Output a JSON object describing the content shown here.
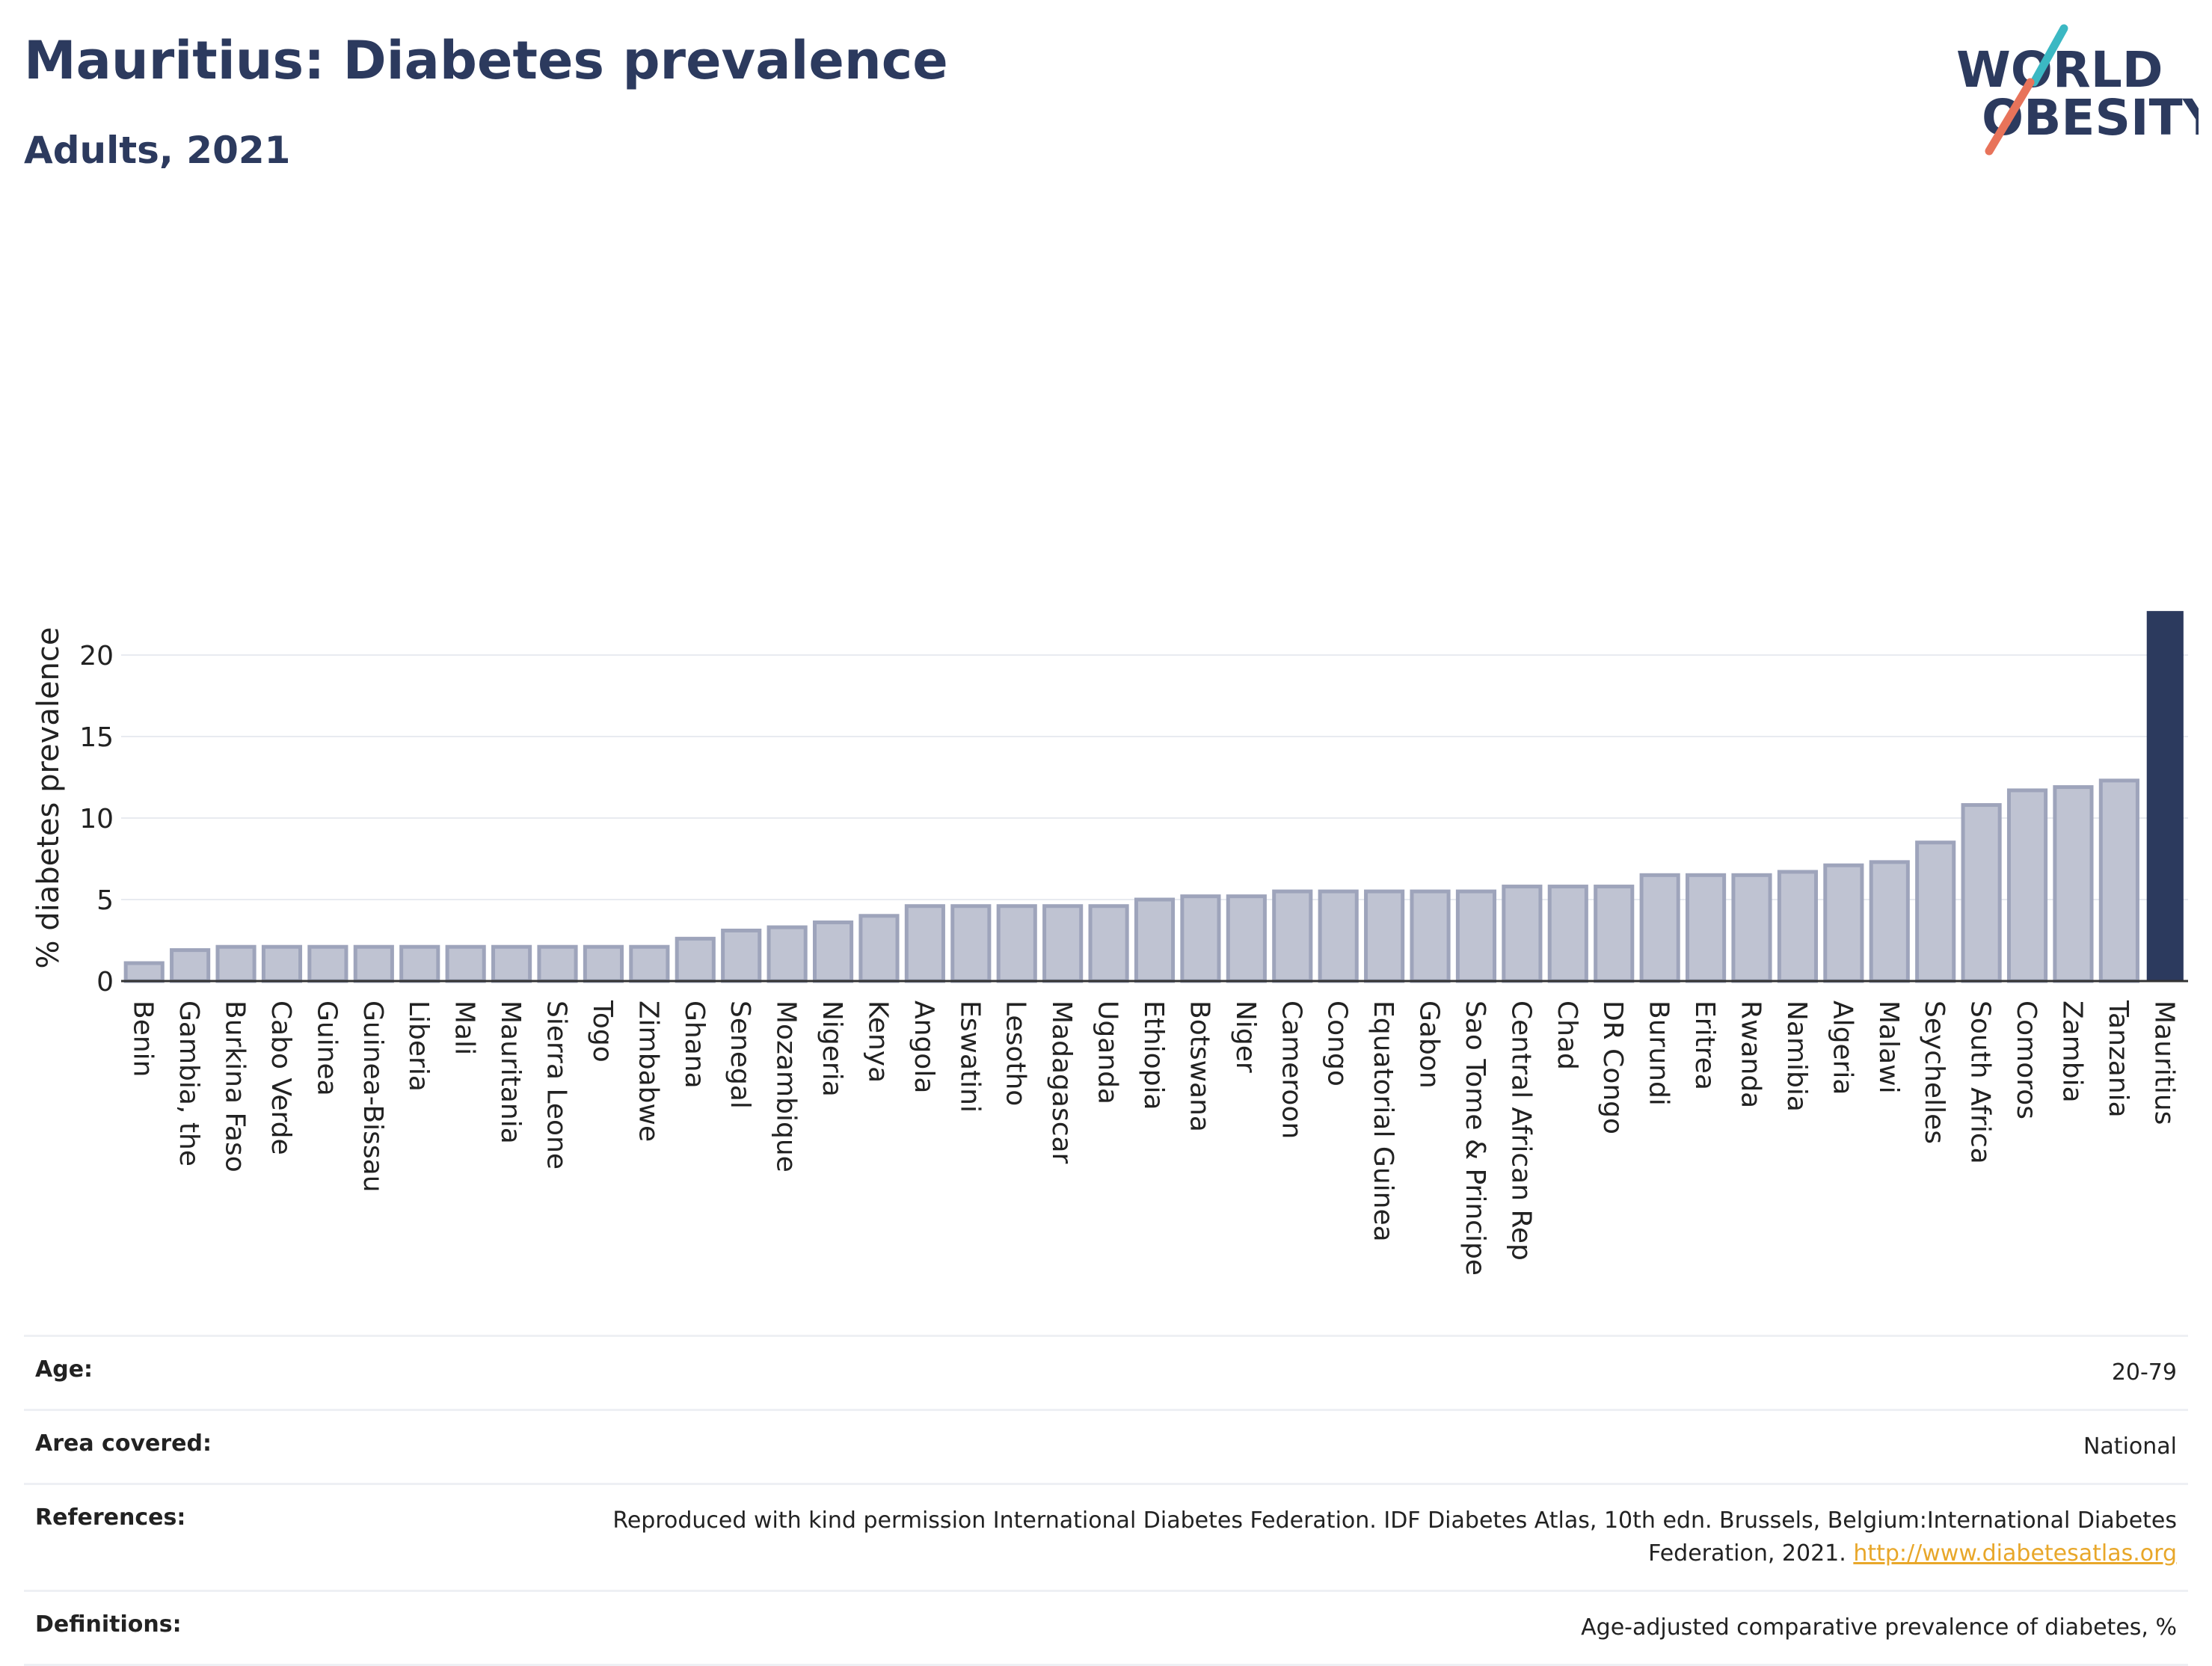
{
  "header": {
    "title": "Mauritius: Diabetes prevalence",
    "subtitle": "Adults, 2021"
  },
  "logo": {
    "line1": "WORLD",
    "line2": "OBESITY",
    "accent_teal": "#3bb8c3",
    "accent_coral": "#e8735a",
    "text_color": "#2c3a5e"
  },
  "colors": {
    "bar_fill": "#bfc3d2",
    "bar_stroke": "#9ea4bb",
    "highlight": "#2c3a5e",
    "grid": "#e8ebf0",
    "link": "#e8a72a"
  },
  "chart_data": {
    "type": "bar",
    "ylabel": "% diabetes prevalence",
    "xlabel": "",
    "ylim": [
      0,
      23
    ],
    "yticks": [
      0,
      5,
      10,
      15,
      20
    ],
    "grid": true,
    "highlight_category": "Mauritius",
    "categories": [
      "Benin",
      "Gambia, the",
      "Burkina Faso",
      "Cabo Verde",
      "Guinea",
      "Guinea-Bissau",
      "Liberia",
      "Mali",
      "Mauritania",
      "Sierra Leone",
      "Togo",
      "Zimbabwe",
      "Ghana",
      "Senegal",
      "Mozambique",
      "Nigeria",
      "Kenya",
      "Angola",
      "Eswatini",
      "Lesotho",
      "Madagascar",
      "Uganda",
      "Ethiopia",
      "Botswana",
      "Niger",
      "Cameroon",
      "Congo",
      "Equatorial Guinea",
      "Gabon",
      "Sao Tome & Principe",
      "Central African Rep",
      "Chad",
      "DR Congo",
      "Burundi",
      "Eritrea",
      "Rwanda",
      "Namibia",
      "Algeria",
      "Malawi",
      "Seychelles",
      "South Africa",
      "Comoros",
      "Zambia",
      "Tanzania",
      "Mauritius"
    ],
    "values": [
      1.1,
      1.9,
      2.1,
      2.1,
      2.1,
      2.1,
      2.1,
      2.1,
      2.1,
      2.1,
      2.1,
      2.1,
      2.6,
      3.1,
      3.3,
      3.6,
      4.0,
      4.6,
      4.6,
      4.6,
      4.6,
      4.6,
      5.0,
      5.2,
      5.2,
      5.5,
      5.5,
      5.5,
      5.5,
      5.5,
      5.8,
      5.8,
      5.8,
      6.5,
      6.5,
      6.5,
      6.7,
      7.1,
      7.3,
      8.5,
      10.8,
      11.7,
      11.9,
      12.3,
      22.7
    ]
  },
  "info": {
    "age_label": "Age:",
    "age_value": "20-79",
    "area_label": "Area covered:",
    "area_value": "National",
    "references_label": "References:",
    "references_text": "Reproduced with kind permission International Diabetes Federation.  IDF Diabetes Atlas, 10th edn. Brussels, Belgium:International Diabetes Federation, 2021.",
    "references_link": "http://www.diabetesatlas.org",
    "definitions_label": "Definitions:",
    "definitions_value": "Age-adjusted comparative prevalence of diabetes, %"
  }
}
